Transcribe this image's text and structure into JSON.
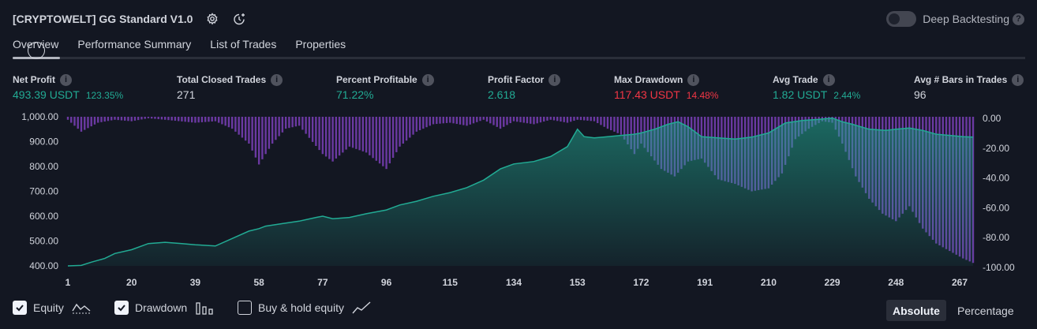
{
  "header": {
    "title": "[CRYPTOWELT] GG Standard V1.0",
    "deep_backtesting_label": "Deep Backtesting",
    "help_glyph": "?"
  },
  "tabs": [
    {
      "label": "Overview",
      "active": true
    },
    {
      "label": "Performance Summary",
      "active": false
    },
    {
      "label": "List of Trades",
      "active": false
    },
    {
      "label": "Properties",
      "active": false
    }
  ],
  "metrics": {
    "net_profit": {
      "label": "Net Profit",
      "value": "493.39 USDT",
      "pct": "123.35%"
    },
    "total_closed_trades": {
      "label": "Total Closed Trades",
      "value": "271"
    },
    "percent_profitable": {
      "label": "Percent Profitable",
      "value": "71.22%"
    },
    "profit_factor": {
      "label": "Profit Factor",
      "value": "2.618"
    },
    "max_drawdown": {
      "label": "Max Drawdown",
      "value": "117.43 USDT",
      "pct": "14.48%"
    },
    "avg_trade": {
      "label": "Avg Trade",
      "value": "1.82 USDT",
      "pct": "2.44%"
    },
    "avg_bars": {
      "label": "Avg # Bars in Trades",
      "value": "96"
    }
  },
  "info_glyph": "i",
  "chart_data": {
    "type": "area",
    "x_ticks": [
      "1",
      "20",
      "39",
      "58",
      "77",
      "96",
      "115",
      "134",
      "153",
      "172",
      "191",
      "210",
      "229",
      "248",
      "267"
    ],
    "left_ticks": [
      "1,000.00",
      "900.00",
      "800.00",
      "700.00",
      "600.00",
      "500.00",
      "400.00"
    ],
    "right_ticks": [
      "0.00",
      "-20.00",
      "-40.00",
      "-60.00",
      "-80.00",
      "-100.00"
    ],
    "left_range": [
      400,
      1000
    ],
    "right_range": [
      -100,
      0
    ],
    "x_range": [
      1,
      271
    ],
    "series": [
      {
        "name": "Equity",
        "color": "#22ab94",
        "x": [
          1,
          5,
          8,
          12,
          15,
          20,
          25,
          30,
          35,
          39,
          45,
          50,
          55,
          58,
          60,
          65,
          70,
          75,
          77,
          80,
          85,
          90,
          96,
          100,
          105,
          110,
          115,
          120,
          125,
          130,
          134,
          140,
          145,
          150,
          153,
          155,
          158,
          162,
          166,
          170,
          172,
          176,
          180,
          183,
          186,
          190,
          195,
          200,
          205,
          210,
          215,
          220,
          225,
          229,
          232,
          235,
          240,
          245,
          248,
          252,
          256,
          260,
          264,
          268,
          271
        ],
        "values": [
          400,
          402,
          415,
          430,
          450,
          465,
          490,
          495,
          490,
          485,
          480,
          510,
          540,
          550,
          560,
          570,
          580,
          595,
          600,
          590,
          595,
          610,
          625,
          645,
          660,
          680,
          695,
          715,
          745,
          790,
          810,
          820,
          840,
          880,
          950,
          920,
          915,
          920,
          925,
          930,
          935,
          950,
          970,
          980,
          960,
          920,
          915,
          910,
          918,
          935,
          975,
          985,
          990,
          995,
          980,
          970,
          950,
          945,
          950,
          955,
          945,
          930,
          925,
          920,
          918
        ]
      },
      {
        "name": "Drawdown",
        "color": "#7b3fb8",
        "x": [
          1,
          5,
          10,
          15,
          20,
          25,
          30,
          39,
          45,
          50,
          55,
          58,
          62,
          66,
          70,
          77,
          80,
          85,
          90,
          96,
          100,
          105,
          110,
          115,
          120,
          125,
          130,
          134,
          140,
          145,
          150,
          153,
          158,
          162,
          166,
          170,
          172,
          178,
          182,
          186,
          190,
          195,
          200,
          205,
          210,
          214,
          218,
          222,
          226,
          229,
          232,
          236,
          240,
          244,
          248,
          252,
          256,
          260,
          264,
          268,
          271
        ],
        "values": [
          -2,
          -10,
          -4,
          -2,
          -3,
          -1,
          -2,
          -4,
          -3,
          -8,
          -18,
          -32,
          -18,
          -8,
          -6,
          -25,
          -30,
          -20,
          -24,
          -35,
          -20,
          -10,
          -5,
          -4,
          -6,
          -2,
          -8,
          -3,
          -5,
          -2,
          -4,
          -2,
          -3,
          -8,
          -12,
          -25,
          -18,
          -35,
          -40,
          -30,
          -28,
          -42,
          -45,
          -50,
          -48,
          -38,
          -15,
          -8,
          -3,
          -4,
          -18,
          -40,
          -55,
          -65,
          -70,
          -60,
          -75,
          -85,
          -90,
          -95,
          -98
        ]
      }
    ]
  },
  "legend": [
    {
      "label": "Equity",
      "checked": true,
      "icon": "equity-line-icon"
    },
    {
      "label": "Drawdown",
      "checked": true,
      "icon": "drawdown-bars-icon"
    },
    {
      "label": "Buy & hold equity",
      "checked": false,
      "icon": "buyhold-line-icon"
    }
  ],
  "modes": {
    "absolute": "Absolute",
    "percentage": "Percentage"
  },
  "colors": {
    "background": "#131722",
    "profit": "#22ab94",
    "loss": "#f23645",
    "drawdown": "#7b3fb8"
  }
}
